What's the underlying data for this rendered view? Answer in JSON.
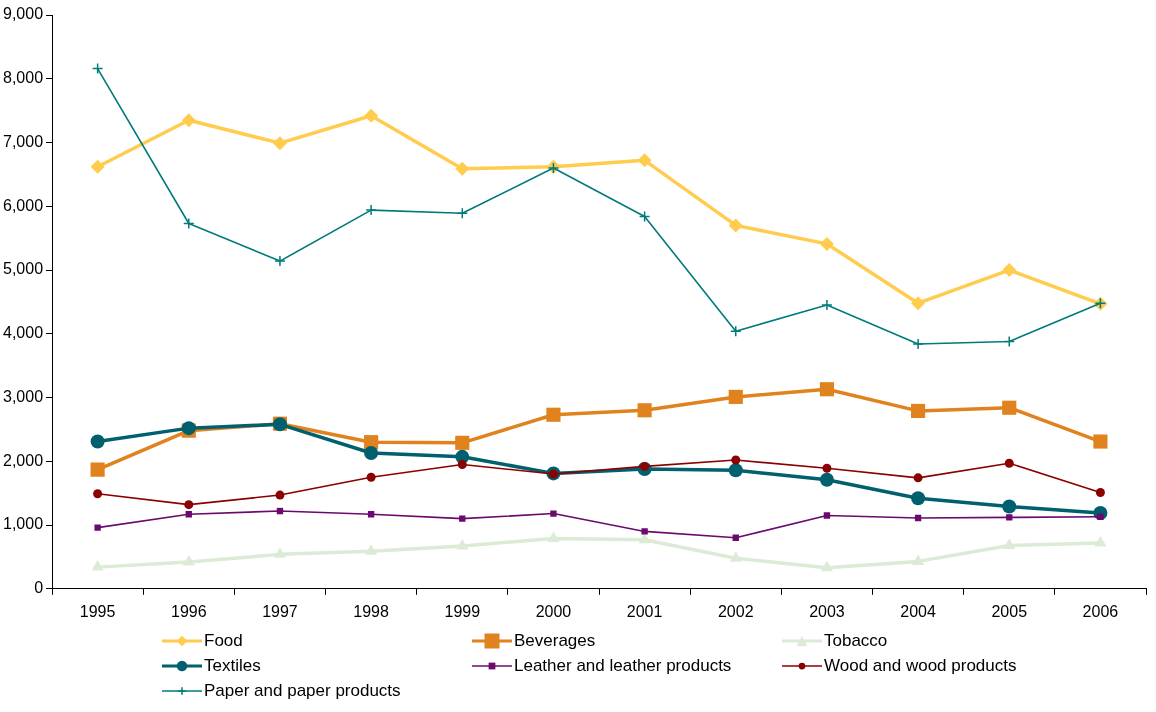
{
  "chart_data": {
    "type": "line",
    "categories": [
      "1995",
      "1996",
      "1997",
      "1998",
      "1999",
      "2000",
      "2001",
      "2002",
      "2003",
      "2004",
      "2005",
      "2006"
    ],
    "ylim": [
      0,
      9000
    ],
    "yticks": [
      0,
      {
        "value": 1000,
        "label": "1,000"
      },
      {
        "value": 2000,
        "label": "2,000"
      },
      {
        "value": 3000,
        "label": "3,000"
      },
      {
        "value": 4000,
        "label": "4,000"
      },
      {
        "value": 5000,
        "label": "5,000"
      },
      {
        "value": 6000,
        "label": "6,000"
      },
      {
        "value": 7000,
        "label": "7,000"
      },
      {
        "value": 8000,
        "label": "8,000"
      },
      {
        "value": 9000,
        "label": "9,000"
      }
    ],
    "grid": false,
    "legend": "bottom",
    "series": [
      {
        "name": "Food",
        "color": "#ffcc4d",
        "marker": "diamond",
        "values": [
          6620,
          7350,
          6990,
          7420,
          6590,
          6620,
          6720,
          5700,
          5410,
          4480,
          5000,
          4470
        ]
      },
      {
        "name": "Beverages",
        "color": "#e0821e",
        "marker": "square",
        "values": [
          1870,
          2480,
          2590,
          2300,
          2290,
          2730,
          2800,
          3010,
          3130,
          2790,
          2840,
          2310
        ]
      },
      {
        "name": "Tobacco",
        "color": "#dcebd6",
        "marker": "triangle",
        "values": [
          340,
          420,
          540,
          590,
          670,
          790,
          770,
          480,
          330,
          430,
          680,
          720
        ]
      },
      {
        "name": "Textiles",
        "color": "#00606e",
        "marker": "circle",
        "values": [
          2310,
          2520,
          2580,
          2130,
          2070,
          1810,
          1880,
          1860,
          1710,
          1420,
          1290,
          1190
        ]
      },
      {
        "name": "Leather and leather products",
        "color": "#6a0a6e",
        "marker": "square",
        "values": [
          960,
          1170,
          1220,
          1170,
          1100,
          1180,
          900,
          800,
          1150,
          1110,
          1120,
          1130
        ]
      },
      {
        "name": "Wood and wood products",
        "color": "#8b0000",
        "marker": "circle",
        "values": [
          1490,
          1320,
          1470,
          1750,
          1950,
          1800,
          1920,
          2020,
          1890,
          1740,
          1970,
          1510
        ]
      },
      {
        "name": "Paper and paper products",
        "color": "#007b7b",
        "marker": "cross",
        "values": [
          8160,
          5730,
          5140,
          5940,
          5890,
          6600,
          5840,
          4040,
          4450,
          3840,
          3880,
          4480
        ]
      }
    ]
  }
}
